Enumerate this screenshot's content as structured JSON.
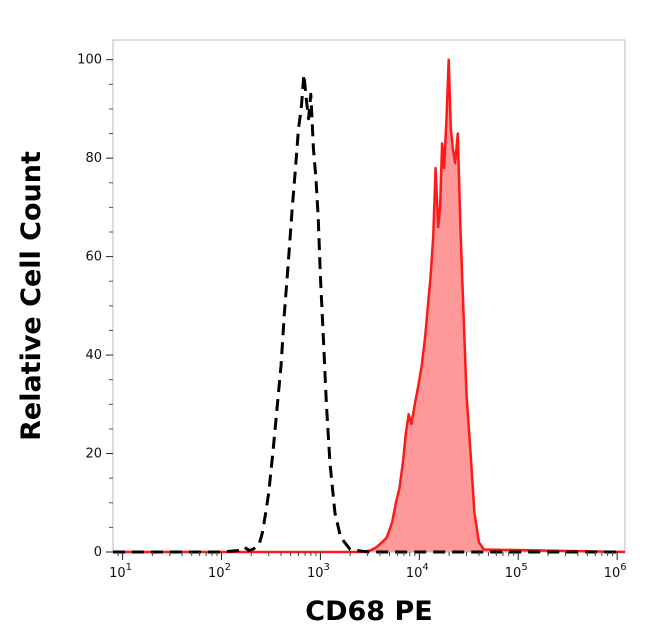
{
  "chart_data": {
    "type": "area",
    "title": "",
    "xlabel": "CD68 PE",
    "ylabel": "Relative Cell Count",
    "x_scale": "log",
    "xlim": [
      8,
      1200000
    ],
    "ylim": [
      0,
      104
    ],
    "x_ticks": [
      {
        "value": 10,
        "base": "10",
        "exp": "1"
      },
      {
        "value": 100,
        "base": "10",
        "exp": "2"
      },
      {
        "value": 1000,
        "base": "10",
        "exp": "3"
      },
      {
        "value": 10000,
        "base": "10",
        "exp": "4"
      },
      {
        "value": 100000,
        "base": "10",
        "exp": "5"
      },
      {
        "value": 1000000,
        "base": "10",
        "exp": "6"
      }
    ],
    "y_ticks": [
      {
        "value": 0,
        "label": "0"
      },
      {
        "value": 20,
        "label": "20"
      },
      {
        "value": 40,
        "label": "40"
      },
      {
        "value": 60,
        "label": "60"
      },
      {
        "value": 80,
        "label": "80"
      },
      {
        "value": 100,
        "label": "100"
      }
    ],
    "grid": false,
    "legend": "none",
    "series": [
      {
        "style": "dashed",
        "color": "#000000",
        "fill": "none",
        "x": [
          8,
          100,
          150,
          170,
          190,
          210,
          240,
          260,
          280,
          300,
          330,
          360,
          400,
          430,
          470,
          520,
          560,
          600,
          640,
          680,
          720,
          760,
          800,
          850,
          900,
          950,
          1000,
          1080,
          1150,
          1250,
          1400,
          1600,
          2000,
          3000,
          1000000
        ],
        "y": [
          0,
          0,
          0.3,
          1,
          0.3,
          0.6,
          1.5,
          4,
          8,
          12,
          20,
          28,
          38,
          48,
          58,
          70,
          78,
          86,
          90,
          97,
          92,
          88,
          93,
          82,
          76,
          68,
          56,
          42,
          30,
          18,
          8,
          3,
          0.5,
          0,
          0
        ]
      },
      {
        "style": "solid",
        "color": "#ff1a1a",
        "fill": "#ff9999",
        "x": [
          8,
          2500,
          3200,
          3700,
          4200,
          4700,
          5300,
          5800,
          6300,
          6800,
          7300,
          7800,
          8300,
          9000,
          9800,
          10600,
          11500,
          12200,
          13000,
          13800,
          14600,
          15500,
          16200,
          17000,
          17800,
          18800,
          19800,
          20800,
          21800,
          23000,
          24500,
          26000,
          28000,
          30000,
          33000,
          36000,
          40000,
          45000,
          1200000
        ],
        "y": [
          0,
          0,
          0.3,
          1,
          2,
          3,
          6,
          10,
          13,
          18,
          24,
          28,
          26,
          30,
          34,
          38,
          44,
          50,
          56,
          64,
          78,
          66,
          70,
          83,
          78,
          88,
          100,
          86,
          82,
          79,
          85,
          66,
          48,
          32,
          20,
          8,
          2,
          0.5,
          0
        ]
      }
    ]
  }
}
